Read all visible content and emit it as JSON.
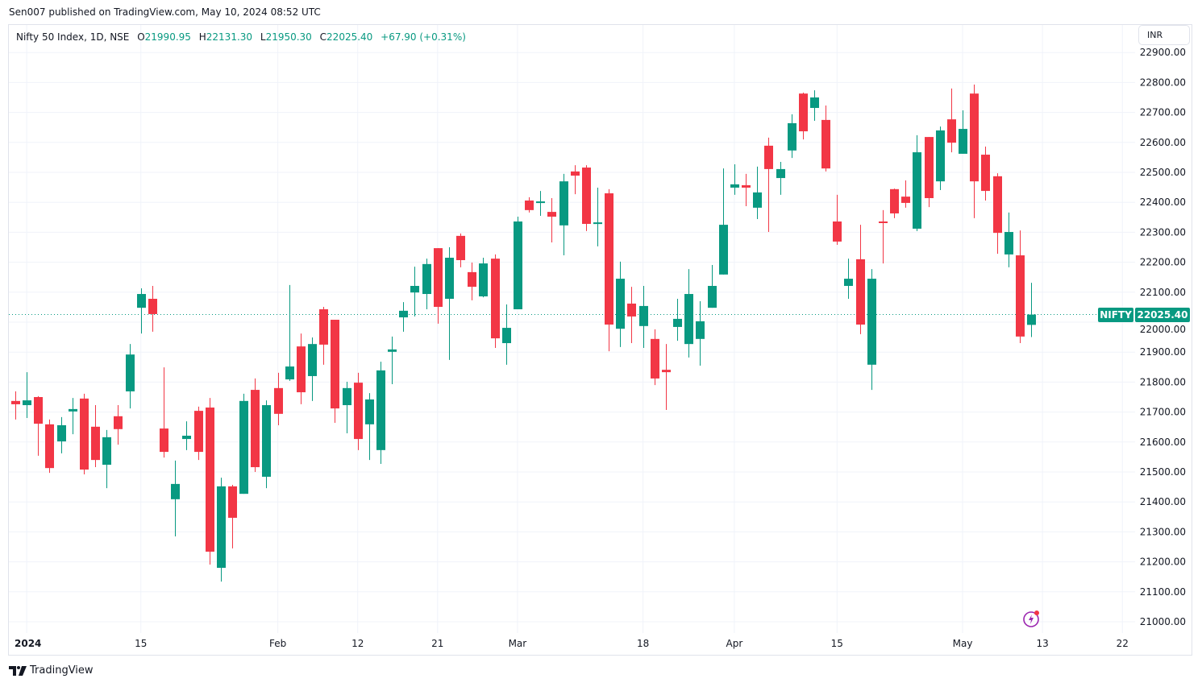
{
  "header": {
    "published": "Sen007 published on TradingView.com, May 10, 2024 08:52 UTC"
  },
  "legend": {
    "symbol": "Nifty 50 Index, 1D, NSE",
    "open_key": "O",
    "open": "21990.95",
    "high_key": "H",
    "high": "22131.30",
    "low_key": "L",
    "low": "21950.30",
    "close_key": "C",
    "close": "22025.40",
    "change": "+67.90 (+0.31%)"
  },
  "currency_button": "INR",
  "last_price": {
    "name": "NIFTY",
    "value": "22025.40",
    "price": 22025.4
  },
  "brand": "TradingView",
  "colors": {
    "up": "#089981",
    "down": "#f23645",
    "grid": "#f0f3fa",
    "alert": "#9c27b0"
  },
  "chart_data": {
    "type": "candlestick",
    "title": "Nifty 50 Index, 1D, NSE",
    "ylim": [
      20970,
      22930
    ],
    "y_ticks": [
      "21000.00",
      "21100.00",
      "21200.00",
      "21300.00",
      "21400.00",
      "21500.00",
      "21600.00",
      "21700.00",
      "21800.00",
      "21900.00",
      "22000.00",
      "22100.00",
      "22200.00",
      "22300.00",
      "22400.00",
      "22500.00",
      "22600.00",
      "22700.00",
      "22800.00",
      "22900.00"
    ],
    "x_ticks": [
      {
        "label": "2024",
        "bar": 1
      },
      {
        "label": "15",
        "bar": 11
      },
      {
        "label": "Feb",
        "bar": 23
      },
      {
        "label": "12",
        "bar": 30
      },
      {
        "label": "21",
        "bar": 37
      },
      {
        "label": "Mar",
        "bar": 44
      },
      {
        "label": "18",
        "bar": 55
      },
      {
        "label": "Apr",
        "bar": 63
      },
      {
        "label": "15",
        "bar": 72
      },
      {
        "label": "May",
        "bar": 83
      },
      {
        "label": "13",
        "bar": 90
      },
      {
        "label": "22",
        "bar": 97
      }
    ],
    "ohlc_fields": [
      "open",
      "high",
      "low",
      "close"
    ],
    "candles": [
      [
        21737,
        21769,
        21675,
        21726
      ],
      [
        21723,
        21833,
        21680,
        21739
      ],
      [
        21750,
        21753,
        21554,
        21661
      ],
      [
        21659,
        21675,
        21497,
        21513
      ],
      [
        21602,
        21683,
        21562,
        21656
      ],
      [
        21702,
        21747,
        21626,
        21710
      ],
      [
        21745,
        21761,
        21492,
        21508
      ],
      [
        21651,
        21723,
        21516,
        21540
      ],
      [
        21524,
        21640,
        21446,
        21616
      ],
      [
        21686,
        21723,
        21591,
        21643
      ],
      [
        21769,
        21927,
        21712,
        21892
      ],
      [
        22048,
        22113,
        21962,
        22094
      ],
      [
        22078,
        22121,
        21968,
        22027
      ],
      [
        21645,
        21849,
        21548,
        21567
      ],
      [
        21409,
        21538,
        21285,
        21460
      ],
      [
        21610,
        21669,
        21573,
        21621
      ],
      [
        21704,
        21718,
        21540,
        21567
      ],
      [
        21715,
        21747,
        21191,
        21234
      ],
      [
        21180,
        21481,
        21134,
        21452
      ],
      [
        21452,
        21457,
        21245,
        21347
      ],
      [
        21427,
        21761,
        21427,
        21737
      ],
      [
        21774,
        21812,
        21500,
        21516
      ],
      [
        21484,
        21739,
        21446,
        21723
      ],
      [
        21780,
        21831,
        21656,
        21694
      ],
      [
        21809,
        22124,
        21804,
        21852
      ],
      [
        21919,
        21962,
        21726,
        21766
      ],
      [
        21820,
        21949,
        21737,
        21927
      ],
      [
        22043,
        22051,
        21858,
        21925
      ],
      [
        22008,
        22008,
        21664,
        21712
      ],
      [
        21723,
        21801,
        21629,
        21780
      ],
      [
        21798,
        21831,
        21573,
        21610
      ],
      [
        21659,
        21763,
        21540,
        21742
      ],
      [
        21573,
        21868,
        21527,
        21839
      ],
      [
        21901,
        21952,
        21793,
        21909
      ],
      [
        22016,
        22067,
        21968,
        22038
      ],
      [
        22099,
        22185,
        22019,
        22121
      ],
      [
        22094,
        22212,
        22043,
        22194
      ],
      [
        22247,
        22247,
        21995,
        22051
      ],
      [
        22078,
        22250,
        21874,
        22215
      ],
      [
        22288,
        22296,
        22183,
        22207
      ],
      [
        22167,
        22199,
        22073,
        22118
      ],
      [
        22086,
        22215,
        22083,
        22196
      ],
      [
        22212,
        22226,
        21914,
        21946
      ],
      [
        21930,
        22059,
        21858,
        21981
      ],
      [
        22043,
        22352,
        22043,
        22336
      ],
      [
        22406,
        22417,
        22366,
        22374
      ],
      [
        22400,
        22438,
        22355,
        22403
      ],
      [
        22368,
        22414,
        22266,
        22352
      ],
      [
        22323,
        22495,
        22223,
        22470
      ],
      [
        22503,
        22524,
        22427,
        22489
      ],
      [
        22516,
        22524,
        22304,
        22328
      ],
      [
        22331,
        22449,
        22253,
        22333
      ],
      [
        22430,
        22444,
        21903,
        21992
      ],
      [
        21978,
        22202,
        21917,
        22145
      ],
      [
        22062,
        22118,
        21930,
        22019
      ],
      [
        21987,
        22121,
        21914,
        22054
      ],
      [
        21944,
        21976,
        21790,
        21812
      ],
      [
        21841,
        21927,
        21707,
        21833
      ],
      [
        21984,
        22078,
        21938,
        22011
      ],
      [
        21927,
        22177,
        21882,
        22094
      ],
      [
        21944,
        22070,
        21855,
        22003
      ],
      [
        22048,
        22191,
        22048,
        22121
      ],
      [
        22159,
        22513,
        22159,
        22325
      ],
      [
        22449,
        22527,
        22425,
        22460
      ],
      [
        22457,
        22495,
        22387,
        22449
      ],
      [
        22382,
        22519,
        22344,
        22433
      ],
      [
        22589,
        22616,
        22301,
        22511
      ],
      [
        22481,
        22535,
        22425,
        22511
      ],
      [
        22573,
        22694,
        22548,
        22664
      ],
      [
        22763,
        22766,
        22610,
        22637
      ],
      [
        22715,
        22774,
        22672,
        22750
      ],
      [
        22675,
        22723,
        22503,
        22513
      ],
      [
        22336,
        22425,
        22258,
        22269
      ],
      [
        22121,
        22212,
        22078,
        22145
      ],
      [
        22210,
        22325,
        21960,
        21992
      ],
      [
        21858,
        22177,
        21774,
        22145
      ],
      [
        22336,
        22374,
        22196,
        22331
      ],
      [
        22444,
        22446,
        22347,
        22363
      ],
      [
        22419,
        22473,
        22382,
        22398
      ],
      [
        22312,
        22624,
        22304,
        22567
      ],
      [
        22618,
        22618,
        22384,
        22414
      ],
      [
        22470,
        22653,
        22441,
        22640
      ],
      [
        22677,
        22780,
        22567,
        22599
      ],
      [
        22562,
        22707,
        22562,
        22645
      ],
      [
        22763,
        22793,
        22347,
        22470
      ],
      [
        22559,
        22586,
        22406,
        22438
      ],
      [
        22487,
        22497,
        22228,
        22298
      ],
      [
        22226,
        22366,
        22183,
        22301
      ],
      [
        22223,
        22306,
        21930,
        21952
      ],
      [
        21990.95,
        22131.3,
        21950.3,
        22025.4
      ]
    ]
  }
}
